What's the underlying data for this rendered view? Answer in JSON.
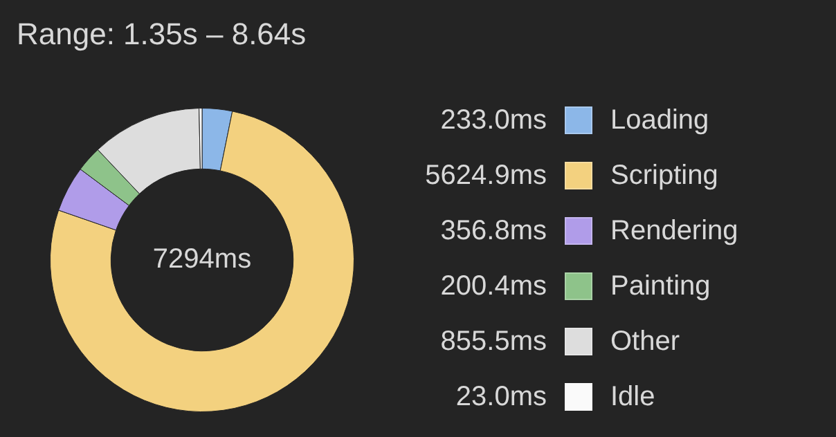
{
  "chart_data": {
    "type": "donut",
    "title": "Range: 1.35s – 8.64s",
    "categories": [
      "Loading",
      "Scripting",
      "Rendering",
      "Painting",
      "Other",
      "Idle"
    ],
    "values": [
      233.0,
      5624.9,
      356.8,
      200.4,
      855.5,
      23.0
    ],
    "colors": [
      "#8cb7e8",
      "#f3d17f",
      "#b09ce9",
      "#8ec38a",
      "#dddddd",
      "#fafafa"
    ],
    "value_labels": [
      "233.0ms",
      "5624.9ms",
      "356.8ms",
      "200.4ms",
      "855.5ms",
      "23.0ms"
    ],
    "annotations": [
      "7294ms"
    ],
    "legend": "right"
  }
}
